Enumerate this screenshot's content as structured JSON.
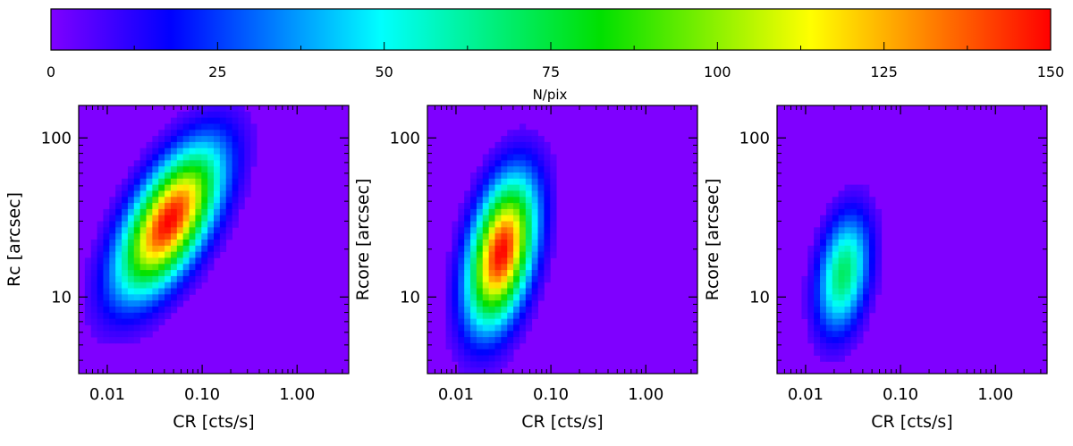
{
  "colorbar": {
    "label": "N/pix",
    "range": [
      0,
      150
    ],
    "ticks": [
      0,
      25,
      50,
      75,
      100,
      125,
      150
    ],
    "tick_labels": [
      "0",
      "25",
      "50",
      "75",
      "100",
      "125",
      "150"
    ],
    "colormap": [
      [
        0.0,
        "#7f00ff"
      ],
      [
        0.12,
        "#0000ff"
      ],
      [
        0.33,
        "#00ffff"
      ],
      [
        0.55,
        "#00e000"
      ],
      [
        0.76,
        "#ffff00"
      ],
      [
        0.88,
        "#ff8000"
      ],
      [
        1.0,
        "#ff0000"
      ]
    ]
  },
  "chart_data": [
    {
      "type": "heatmap",
      "xlabel": "CR [cts/s]",
      "ylabel": "Rc [arcsec]",
      "xscale": "log",
      "yscale": "log",
      "xlim": [
        0.005,
        3.5
      ],
      "ylim": [
        3.3,
        160
      ],
      "xticks": [
        0.01,
        0.1,
        1.0
      ],
      "xtick_labels": [
        "0.01",
        "0.10",
        "1.00"
      ],
      "yticks": [
        10,
        100
      ],
      "ytick_labels": [
        "10",
        "100"
      ],
      "density_model": {
        "peak_x": 0.045,
        "peak_y": 30,
        "peak_value": 150,
        "sigma_major_dex": 0.42,
        "sigma_minor_dex": 0.2,
        "angle_deg": 38
      }
    },
    {
      "type": "heatmap",
      "xlabel": "CR [cts/s]",
      "ylabel": "Rcore [arcsec]",
      "xscale": "log",
      "yscale": "log",
      "xlim": [
        0.005,
        3.5
      ],
      "ylim": [
        3.3,
        160
      ],
      "xticks": [
        0.01,
        0.1,
        1.0
      ],
      "xtick_labels": [
        "0.01",
        "0.10",
        "1.00"
      ],
      "yticks": [
        10,
        100
      ],
      "ytick_labels": [
        "10",
        "100"
      ],
      "density_model": {
        "peak_x": 0.03,
        "peak_y": 19,
        "peak_value": 150,
        "sigma_major_dex": 0.33,
        "sigma_minor_dex": 0.2,
        "angle_deg": 62
      }
    },
    {
      "type": "heatmap",
      "xlabel": "CR [cts/s]",
      "ylabel": "Rcore [arcsec]",
      "xscale": "log",
      "yscale": "log",
      "xlim": [
        0.005,
        3.5
      ],
      "ylim": [
        3.3,
        160
      ],
      "xticks": [
        0.01,
        0.1,
        1.0
      ],
      "xtick_labels": [
        "0.01",
        "0.10",
        "1.00"
      ],
      "yticks": [
        10,
        100
      ],
      "ytick_labels": [
        "10",
        "100"
      ],
      "density_model": {
        "peak_x": 0.025,
        "peak_y": 14,
        "peak_value": 70,
        "sigma_major_dex": 0.26,
        "sigma_minor_dex": 0.17,
        "angle_deg": 68
      }
    }
  ]
}
